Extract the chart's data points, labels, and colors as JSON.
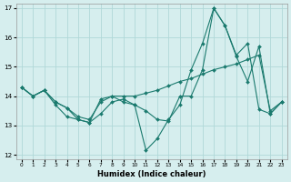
{
  "xlabel": "Humidex (Indice chaleur)",
  "bg_color": "#d6eeee",
  "line_color": "#1a7a6e",
  "grid_color": "#b0d8d8",
  "xlim": [
    -0.5,
    23.5
  ],
  "ylim": [
    11.85,
    17.15
  ],
  "yticks": [
    12,
    13,
    14,
    15,
    16,
    17
  ],
  "xticks": [
    0,
    1,
    2,
    3,
    4,
    5,
    6,
    7,
    8,
    9,
    10,
    11,
    12,
    13,
    14,
    15,
    16,
    17,
    18,
    19,
    20,
    21,
    22,
    23
  ],
  "line1_x": [
    0,
    1,
    2,
    3,
    4,
    5,
    6,
    7,
    8,
    9,
    10,
    11,
    12,
    13,
    14,
    15,
    16,
    17,
    18,
    19,
    20,
    21,
    22,
    23
  ],
  "line1_y": [
    14.3,
    14.0,
    14.2,
    13.7,
    13.3,
    13.2,
    13.1,
    13.4,
    13.8,
    13.9,
    13.7,
    13.5,
    13.2,
    13.15,
    14.0,
    14.0,
    14.9,
    17.0,
    16.4,
    15.4,
    15.8,
    13.55,
    13.4,
    13.8
  ],
  "line2_x": [
    0,
    1,
    2,
    3,
    4,
    5,
    6,
    7,
    8,
    9,
    10,
    11,
    12,
    13,
    14,
    15,
    16,
    17,
    18,
    19,
    20,
    21,
    22,
    23
  ],
  "line2_y": [
    14.3,
    14.0,
    14.2,
    13.8,
    13.6,
    13.2,
    13.1,
    13.9,
    14.0,
    13.8,
    13.7,
    12.15,
    12.55,
    13.2,
    13.7,
    14.9,
    15.8,
    17.0,
    16.4,
    15.35,
    14.5,
    15.7,
    13.4,
    13.8
  ],
  "line3_x": [
    0,
    1,
    2,
    3,
    4,
    5,
    6,
    7,
    8,
    9,
    10,
    11,
    12,
    13,
    14,
    15,
    16,
    17,
    18,
    19,
    20,
    21,
    22,
    23
  ],
  "line3_y": [
    14.3,
    14.0,
    14.2,
    13.8,
    13.6,
    13.3,
    13.2,
    13.8,
    14.0,
    14.0,
    14.0,
    14.1,
    14.2,
    14.35,
    14.5,
    14.6,
    14.75,
    14.9,
    15.0,
    15.1,
    15.25,
    15.4,
    13.5,
    13.8
  ]
}
